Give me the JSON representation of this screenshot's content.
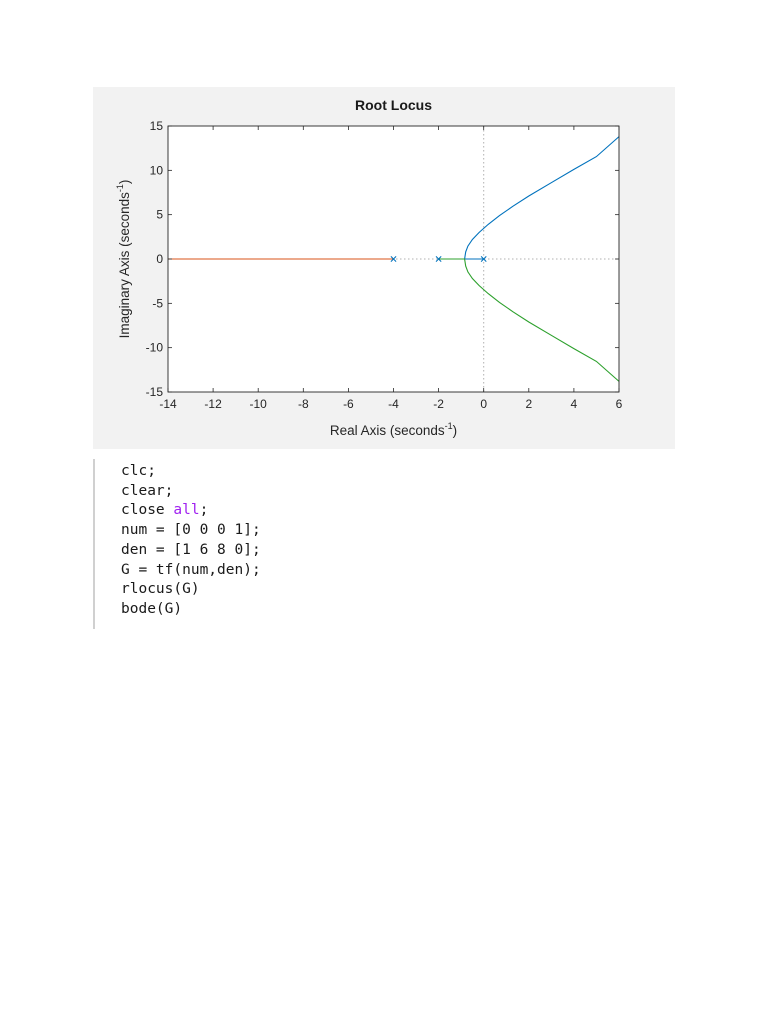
{
  "colors": {
    "panel_bg": "#f2f2f2",
    "axes_bg": "#ffffff",
    "branch_1": "#0072bd",
    "branch_2": "#d95319",
    "branch_3": "#2ca02c",
    "keyword": "#a020f0",
    "grid_dotted": "#b0b0b0"
  },
  "chart_data": {
    "type": "line",
    "title": "Root Locus",
    "xlabel": "Real Axis  (seconds",
    "xlabel_sup": "-1",
    "xlabel_end": ")",
    "ylabel": "Imaginary Axis  (seconds",
    "ylabel_sup": "-1",
    "ylabel_end": ")",
    "xlim": [
      -14,
      6
    ],
    "ylim": [
      -15,
      15
    ],
    "xticks": [
      -14,
      -12,
      -10,
      -8,
      -6,
      -4,
      -2,
      0,
      2,
      4,
      6
    ],
    "yticks": [
      -15,
      -10,
      -5,
      0,
      5,
      10,
      15
    ],
    "grid": false,
    "poles": [
      {
        "x": -4,
        "y": 0
      },
      {
        "x": -2,
        "y": 0
      },
      {
        "x": 0,
        "y": 0
      }
    ],
    "series": [
      {
        "color": "#0072bd",
        "x": [
          0,
          -0.3,
          -0.6,
          -0.845,
          -0.845,
          -0.8,
          -0.7,
          -0.5,
          -0.2,
          0.2,
          0.7,
          1.3,
          2,
          3,
          4,
          5,
          6
        ],
        "y": [
          0,
          0,
          0,
          0,
          0,
          0.8,
          1.45,
          2.2,
          3.0,
          3.9,
          4.9,
          5.95,
          7.1,
          8.6,
          10.1,
          11.55,
          13.8
        ]
      },
      {
        "color": "#2ca02c",
        "x": [
          -2,
          -1.6,
          -1.2,
          -0.845,
          -0.845,
          -0.8,
          -0.7,
          -0.5,
          -0.2,
          0.2,
          0.7,
          1.3,
          2,
          3,
          4,
          5,
          6
        ],
        "y": [
          0,
          0,
          0,
          0,
          0,
          -0.8,
          -1.45,
          -2.2,
          -3.0,
          -3.9,
          -4.9,
          -5.95,
          -7.1,
          -8.6,
          -10.1,
          -11.55,
          -13.8
        ]
      },
      {
        "color": "#d95319",
        "x": [
          -4,
          -6,
          -8,
          -10,
          -12,
          -14
        ],
        "y": [
          0,
          0,
          0,
          0,
          0,
          0
        ]
      }
    ]
  },
  "code": {
    "lines": [
      [
        {
          "text": "clc;"
        }
      ],
      [
        {
          "text": "clear;"
        }
      ],
      [
        {
          "text": "close "
        },
        {
          "text": "all",
          "kw": true
        },
        {
          "text": ";"
        }
      ],
      [
        {
          "text": "num = [0 0 0 1];"
        }
      ],
      [
        {
          "text": "den = [1 6 8 0];"
        }
      ],
      [
        {
          "text": "G = tf(num,den);"
        }
      ],
      [
        {
          "text": "rlocus(G)"
        }
      ],
      [
        {
          "text": "bode(G)"
        }
      ]
    ]
  }
}
